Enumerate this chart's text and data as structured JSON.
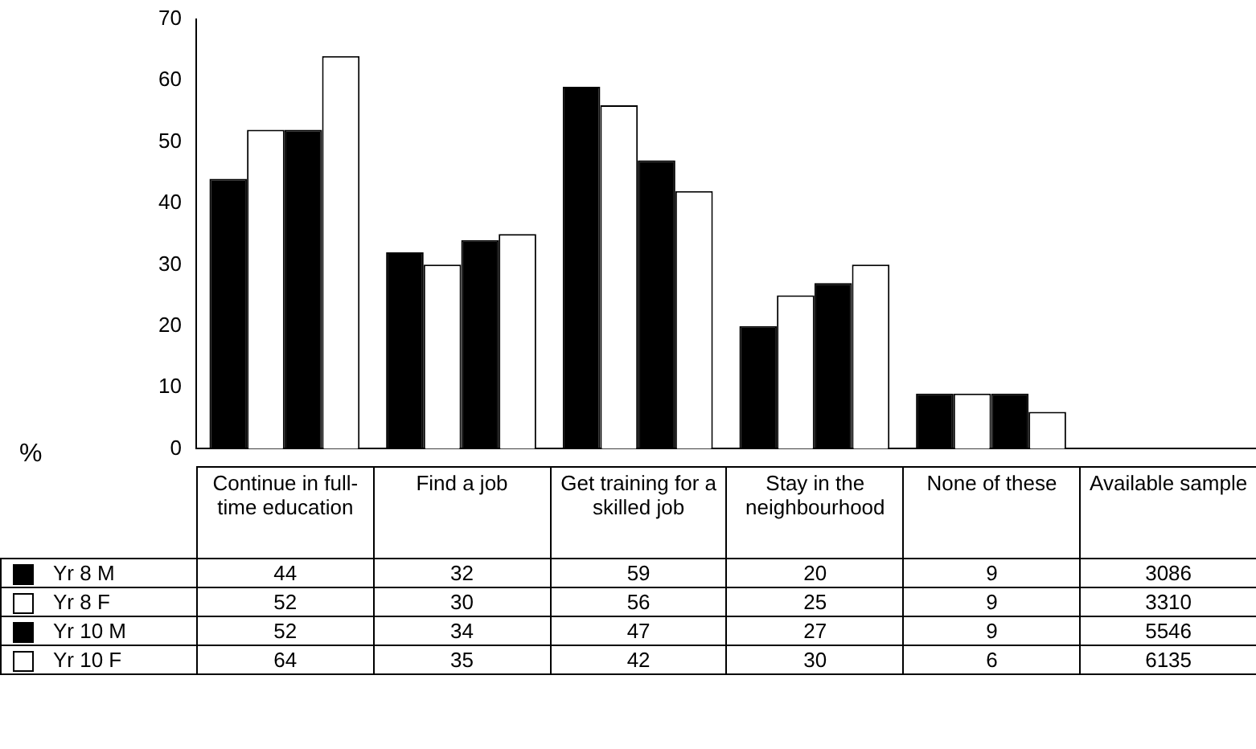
{
  "chart_data": {
    "type": "bar",
    "ylabel": "%",
    "categories": [
      "Continue in full-time education",
      "Find a job",
      "Get training for a skilled job",
      "Stay in the neighbourhood",
      "None of these",
      "Available sample"
    ],
    "ylim": [
      0,
      70
    ],
    "yticks": [
      0,
      10,
      20,
      30,
      40,
      50,
      60,
      70
    ],
    "grid": false,
    "legend": "bottom left",
    "series": [
      {
        "name": "Yr 8 M",
        "color": "#000000",
        "values": [
          44,
          32,
          59,
          20,
          9,
          null
        ],
        "value_labels": [
          "44",
          "32",
          "59",
          "20",
          "9",
          "3086"
        ]
      },
      {
        "name": "Yr 8 F",
        "color": "#ffffff",
        "values": [
          52,
          30,
          56,
          25,
          9,
          null
        ],
        "value_labels": [
          "52",
          "30",
          "56",
          "25",
          "9",
          "3310"
        ]
      },
      {
        "name": "Yr 10 M",
        "color": "#000000",
        "values": [
          52,
          34,
          47,
          27,
          9,
          null
        ],
        "value_labels": [
          "52",
          "34",
          "47",
          "27",
          "9",
          "5546"
        ]
      },
      {
        "name": "Yr 10 F",
        "color": "#ffffff",
        "values": [
          64,
          35,
          42,
          30,
          6,
          null
        ],
        "value_labels": [
          "64",
          "35",
          "42",
          "30",
          "6",
          "6135"
        ]
      }
    ]
  }
}
